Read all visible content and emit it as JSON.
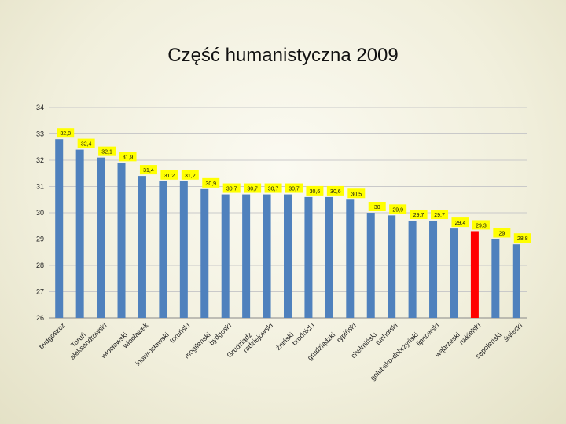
{
  "chart_data": {
    "type": "bar",
    "title": "Część humanistyczna 2009",
    "xlabel": "",
    "ylabel": "",
    "ylim": [
      26,
      34
    ],
    "yticks": [
      26,
      27,
      28,
      29,
      30,
      31,
      32,
      33,
      34
    ],
    "grid": true,
    "legend": "none",
    "categories": [
      "bydgoszcz",
      "Toruń",
      "aleksandrowski",
      "włocławski",
      "włocławek",
      "inowrocławski",
      "toruński",
      "mogileński",
      "bydgoski",
      "Grudziądz",
      "radziejowski",
      "żniński",
      "brodnicki",
      "grudziądzki",
      "rypiński",
      "chełmiński",
      "tucholski",
      "golubsko-dobrzyński",
      "lipnowski",
      "wąbrzeski",
      "nakielski",
      "sępoleński",
      "świecki"
    ],
    "values": [
      32.8,
      32.4,
      32.1,
      31.9,
      31.4,
      31.2,
      31.2,
      30.9,
      30.7,
      30.7,
      30.7,
      30.7,
      30.6,
      30.6,
      30.5,
      30.0,
      29.9,
      29.7,
      29.7,
      29.4,
      29.3,
      29.0,
      28.8
    ],
    "data_labels": [
      "32,8",
      "32,4",
      "32,1",
      "31,9",
      "31,4",
      "31,2",
      "31,2",
      "30,9",
      "30,7",
      "30,7",
      "30,7",
      "30,7",
      "30,6",
      "30,6",
      "30,5",
      "30",
      "29,9",
      "29,7",
      "29,7",
      "29,4",
      "29,3",
      "29",
      "28,8"
    ],
    "highlight_index": 20,
    "colors": {
      "bar": "#4f81bd",
      "highlight": "#ff0000",
      "label_bg": "#ffff00",
      "grid": "#c9c9c9"
    }
  }
}
